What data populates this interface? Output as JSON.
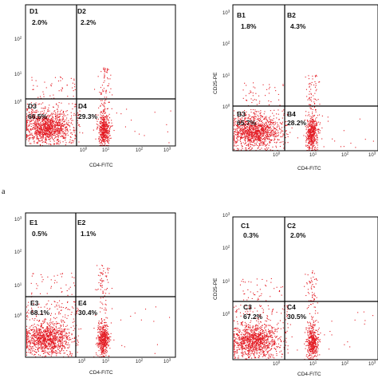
{
  "colors": {
    "dots": "#e31b23",
    "frame": "#000000",
    "background": "#ffffff"
  },
  "panel_tag": "a",
  "chart_data": [
    {
      "type": "scatter",
      "panel": "top-left",
      "xlabel": "CD4-FITC",
      "ylabel": "",
      "xscale": "log",
      "yscale": "log",
      "x_ticks": [
        "10^0",
        "10^1",
        "10^2",
        "10^3"
      ],
      "y_ticks": [
        "10^0",
        "10^1",
        "10^2"
      ],
      "quadrants": [
        {
          "label": "D1",
          "percent": "2.0%"
        },
        {
          "label": "D2",
          "percent": "2.2%"
        },
        {
          "label": "D3",
          "percent": "66.5%"
        },
        {
          "label": "D4",
          "percent": "29.3%"
        }
      ]
    },
    {
      "type": "scatter",
      "panel": "top-right",
      "xlabel": "CD4-FITC",
      "ylabel": "CD25-PE",
      "xscale": "log",
      "yscale": "log",
      "x_ticks": [
        "10^0",
        "10^1",
        "10^2",
        "10^3"
      ],
      "y_ticks": [
        "10^0",
        "10^1",
        "10^2",
        "10^3"
      ],
      "quadrants": [
        {
          "label": "B1",
          "percent": "1.8%"
        },
        {
          "label": "B2",
          "percent": "4.3%"
        },
        {
          "label": "B3",
          "percent": "65.7%"
        },
        {
          "label": "B4",
          "percent": "28.2%"
        }
      ]
    },
    {
      "type": "scatter",
      "panel": "bottom-left",
      "xlabel": "CD4-FITC",
      "ylabel": "",
      "xscale": "log",
      "yscale": "log",
      "x_ticks": [
        "10^0",
        "10^1",
        "10^2",
        "10^3"
      ],
      "y_ticks": [
        "10^0",
        "10^1",
        "10^2",
        "10^3"
      ],
      "quadrants": [
        {
          "label": "E1",
          "percent": "0.5%"
        },
        {
          "label": "E2",
          "percent": "1.1%"
        },
        {
          "label": "E3",
          "percent": "68.1%"
        },
        {
          "label": "E4",
          "percent": "30.4%"
        }
      ]
    },
    {
      "type": "scatter",
      "panel": "bottom-right",
      "xlabel": "CD4-FITC",
      "ylabel": "CD25-PE",
      "xscale": "log",
      "yscale": "log",
      "x_ticks": [
        "10^0",
        "10^1",
        "10^2",
        "10^3"
      ],
      "y_ticks": [
        "10^0",
        "10^1",
        "10^2",
        "10^3"
      ],
      "quadrants": [
        {
          "label": "C1",
          "percent": "0.3%"
        },
        {
          "label": "C2",
          "percent": "2.0%"
        },
        {
          "label": "C3",
          "percent": "67.2%"
        },
        {
          "label": "C4",
          "percent": "30.5%"
        }
      ]
    }
  ]
}
